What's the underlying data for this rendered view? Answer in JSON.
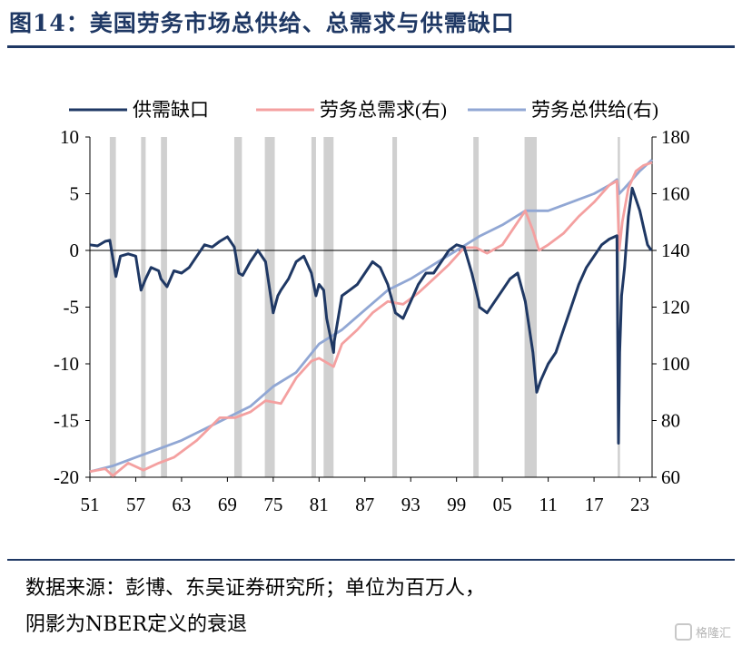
{
  "title": "图14：美国劳务市场总供给、总需求与供需缺口",
  "source_lines": [
    "数据来源：彭博、东吴证券研究所；单位为百万人，",
    "阴影为NBER定义的衰退"
  ],
  "watermark": "格隆汇",
  "chart_data": {
    "type": "line",
    "x_tick_labels": [
      "51",
      "57",
      "63",
      "69",
      "75",
      "81",
      "87",
      "93",
      "99",
      "05",
      "11",
      "17",
      "23"
    ],
    "x_range": [
      1951,
      2024.6
    ],
    "y_left": {
      "range": [
        -20,
        10
      ],
      "ticks": [
        10,
        5,
        0,
        -5,
        -10,
        -15,
        -20
      ]
    },
    "y_right": {
      "range": [
        60,
        180
      ],
      "ticks": [
        180,
        160,
        140,
        120,
        100,
        80,
        60
      ]
    },
    "legend": [
      "供需缺口",
      "劳务总需求(右)",
      "劳务总供给(右)"
    ],
    "colors": {
      "gap": "#1f3864",
      "demand": "#f4a0a0",
      "supply": "#91a7d4",
      "shade": "#d0d0d0"
    },
    "recessions": [
      [
        1953.6,
        1954.4
      ],
      [
        1957.7,
        1958.3
      ],
      [
        1960.3,
        1961.1
      ],
      [
        1969.9,
        1970.9
      ],
      [
        1973.9,
        1975.2
      ],
      [
        1980.0,
        1980.6
      ],
      [
        1981.6,
        1982.9
      ],
      [
        1990.6,
        1991.2
      ],
      [
        2001.2,
        2001.9
      ],
      [
        2007.9,
        2009.5
      ],
      [
        2020.1,
        2020.4
      ]
    ],
    "series": [
      {
        "name": "供需缺口",
        "axis": "left",
        "x": [
          1951,
          1952,
          1953,
          1953.6,
          1954.4,
          1955,
          1956,
          1957,
          1957.7,
          1958.3,
          1959,
          1960,
          1960.3,
          1961.1,
          1962,
          1963,
          1964,
          1965,
          1966,
          1967,
          1968,
          1969,
          1969.9,
          1970.5,
          1971,
          1972,
          1973,
          1974,
          1975,
          1975.6,
          1976,
          1977,
          1978,
          1979,
          1980,
          1980.6,
          1981,
          1981.6,
          1982,
          1982.9,
          1983,
          1984,
          1985,
          1986,
          1987,
          1988,
          1989,
          1990,
          1991,
          1992,
          1993,
          1994,
          1995,
          1996,
          1997,
          1998,
          1999,
          2000,
          2001,
          2001.9,
          2002,
          2003,
          2004,
          2005,
          2006,
          2007,
          2008,
          2009,
          2009.5,
          2010,
          2011,
          2012,
          2013,
          2014,
          2015,
          2016,
          2017,
          2018,
          2019,
          2020.0,
          2020.2,
          2020.35,
          2020.6,
          2021,
          2021.5,
          2022,
          2022.5,
          2023,
          2023.5,
          2024,
          2024.5
        ],
        "y": [
          0.5,
          0.4,
          0.8,
          0.9,
          -2.3,
          -0.5,
          -0.3,
          -0.5,
          -3.5,
          -2.5,
          -1.5,
          -1.8,
          -2.5,
          -3.2,
          -1.8,
          -2.0,
          -1.5,
          -0.5,
          0.5,
          0.3,
          0.8,
          1.2,
          0.3,
          -2.0,
          -2.2,
          -1.0,
          0.0,
          -1.0,
          -5.5,
          -4.0,
          -3.5,
          -2.5,
          -1.0,
          -0.5,
          -2.0,
          -4.0,
          -3.0,
          -3.5,
          -6.0,
          -9.0,
          -8.0,
          -4.0,
          -3.5,
          -3.0,
          -2.0,
          -1.0,
          -1.5,
          -3.0,
          -5.5,
          -6.0,
          -4.5,
          -3.0,
          -2.0,
          -2.0,
          -1.0,
          0.0,
          0.5,
          0.3,
          -2.0,
          -4.5,
          -5.0,
          -5.5,
          -4.5,
          -3.5,
          -2.5,
          -2.0,
          -4.5,
          -9.0,
          -12.5,
          -11.5,
          -10.0,
          -9.0,
          -7.0,
          -5.0,
          -3.0,
          -1.5,
          -0.5,
          0.5,
          1.0,
          1.3,
          -17.0,
          -9.0,
          -4.0,
          -1.5,
          3.0,
          5.5,
          4.5,
          3.5,
          2.0,
          0.5,
          0.0
        ]
      },
      {
        "name": "劳务总需求(右)",
        "axis": "right",
        "x": [
          1951,
          1953,
          1954,
          1956,
          1958,
          1960,
          1962,
          1965,
          1968,
          1970,
          1972,
          1974,
          1976,
          1978,
          1980,
          1981,
          1982.9,
          1984,
          1986,
          1988,
          1990,
          1992,
          1994,
          1996,
          1998,
          2000,
          2001.5,
          2003,
          2005,
          2007,
          2008,
          2009,
          2009.8,
          2011,
          2013,
          2015,
          2017,
          2019,
          2020.0,
          2020.3,
          2020.7,
          2021.5,
          2022.5,
          2023.5,
          2024.6
        ],
        "y": [
          62,
          63,
          60.5,
          65,
          62.5,
          65,
          67,
          73,
          81,
          81,
          83,
          87,
          86,
          95,
          101,
          102,
          99,
          107,
          112,
          118,
          122,
          121,
          125,
          130,
          135,
          141,
          141,
          139,
          142,
          150,
          154,
          147,
          140,
          142,
          146,
          152,
          157,
          163,
          164.5,
          140,
          150,
          162,
          168,
          170,
          171
        ]
      },
      {
        "name": "劳务总供给(右)",
        "axis": "right",
        "x": [
          1951,
          1954,
          1957,
          1960,
          1963,
          1966,
          1969,
          1972,
          1975,
          1978,
          1981,
          1984,
          1987,
          1990,
          1993,
          1996,
          1999,
          2002,
          2005,
          2008,
          2011,
          2014,
          2017,
          2019,
          2020.0,
          2020.3,
          2021,
          2022,
          2023,
          2024.6
        ],
        "y": [
          62,
          64,
          67,
          70,
          73,
          77,
          81,
          85,
          92,
          97,
          107,
          112,
          119,
          126,
          130,
          135,
          140,
          145,
          149,
          154,
          154,
          157,
          160,
          163,
          165,
          160,
          162,
          165,
          168,
          172
        ]
      }
    ]
  }
}
